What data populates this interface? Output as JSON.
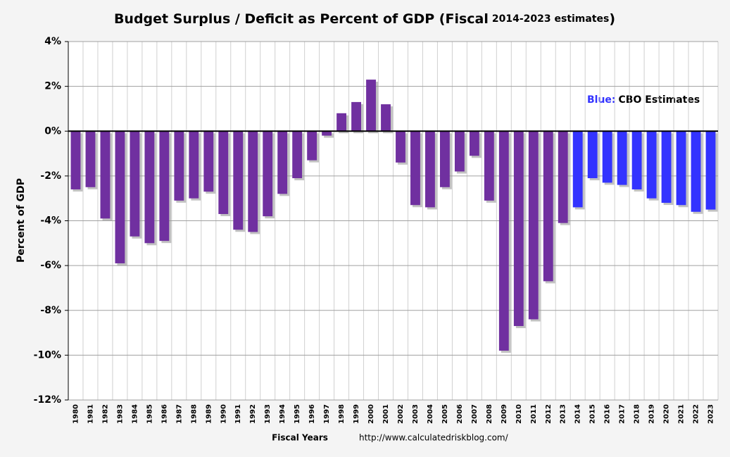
{
  "chart_data": {
    "type": "bar",
    "title_parts": [
      "Budget Surplus / Deficit as Percent of GDP (Fiscal",
      "2014-2023 estimates",
      ")"
    ],
    "y_label": "Percent of GDP",
    "x_label": "Fiscal Years",
    "source": "http://www.calculatedriskblog.com/",
    "annotation": {
      "key": "Blue:",
      "text": "CBO Estimates",
      "key_color": "#3333ff"
    },
    "categories": [
      "1980",
      "1981",
      "1982",
      "1983",
      "1984",
      "1985",
      "1986",
      "1987",
      "1988",
      "1989",
      "1990",
      "1991",
      "1992",
      "1993",
      "1994",
      "1995",
      "1996",
      "1997",
      "1998",
      "1999",
      "2000",
      "2001",
      "2002",
      "2003",
      "2004",
      "2005",
      "2006",
      "2007",
      "2008",
      "2009",
      "2010",
      "2011",
      "2012",
      "2013",
      "2014",
      "2015",
      "2016",
      "2017",
      "2018",
      "2019",
      "2020",
      "2021",
      "2022",
      "2023"
    ],
    "values": [
      -2.6,
      -2.5,
      -3.9,
      -5.9,
      -4.7,
      -5.0,
      -4.9,
      -3.1,
      -3.0,
      -2.7,
      -3.7,
      -4.4,
      -4.5,
      -3.8,
      -2.8,
      -2.1,
      -1.3,
      -0.2,
      0.8,
      1.3,
      2.3,
      1.2,
      -1.4,
      -3.3,
      -3.4,
      -2.5,
      -1.8,
      -1.1,
      -3.1,
      -9.8,
      -8.7,
      -8.4,
      -6.7,
      -4.1,
      -3.4,
      -2.1,
      -2.3,
      -2.4,
      -2.6,
      -3.0,
      -3.2,
      -3.3,
      -3.6,
      -3.5
    ],
    "colors": [
      "#7030a0",
      "#7030a0",
      "#7030a0",
      "#7030a0",
      "#7030a0",
      "#7030a0",
      "#7030a0",
      "#7030a0",
      "#7030a0",
      "#7030a0",
      "#7030a0",
      "#7030a0",
      "#7030a0",
      "#7030a0",
      "#7030a0",
      "#7030a0",
      "#7030a0",
      "#7030a0",
      "#7030a0",
      "#7030a0",
      "#7030a0",
      "#7030a0",
      "#7030a0",
      "#7030a0",
      "#7030a0",
      "#7030a0",
      "#7030a0",
      "#7030a0",
      "#7030a0",
      "#7030a0",
      "#7030a0",
      "#7030a0",
      "#7030a0",
      "#7030a0",
      "#3333ff",
      "#3333ff",
      "#3333ff",
      "#3333ff",
      "#3333ff",
      "#3333ff",
      "#3333ff",
      "#3333ff",
      "#3333ff",
      "#3333ff"
    ],
    "ylim": [
      -12,
      4
    ],
    "yticks": [
      {
        "value": -12,
        "label": "-12%"
      },
      {
        "value": -10,
        "label": "-10%"
      },
      {
        "value": -8,
        "label": "-8%"
      },
      {
        "value": -6,
        "label": "-6%"
      },
      {
        "value": -4,
        "label": "-4%"
      },
      {
        "value": -2,
        "label": "-2%"
      },
      {
        "value": 0,
        "label": "0%"
      },
      {
        "value": 2,
        "label": "2%"
      },
      {
        "value": 4,
        "label": "4%"
      }
    ],
    "grid": true
  }
}
